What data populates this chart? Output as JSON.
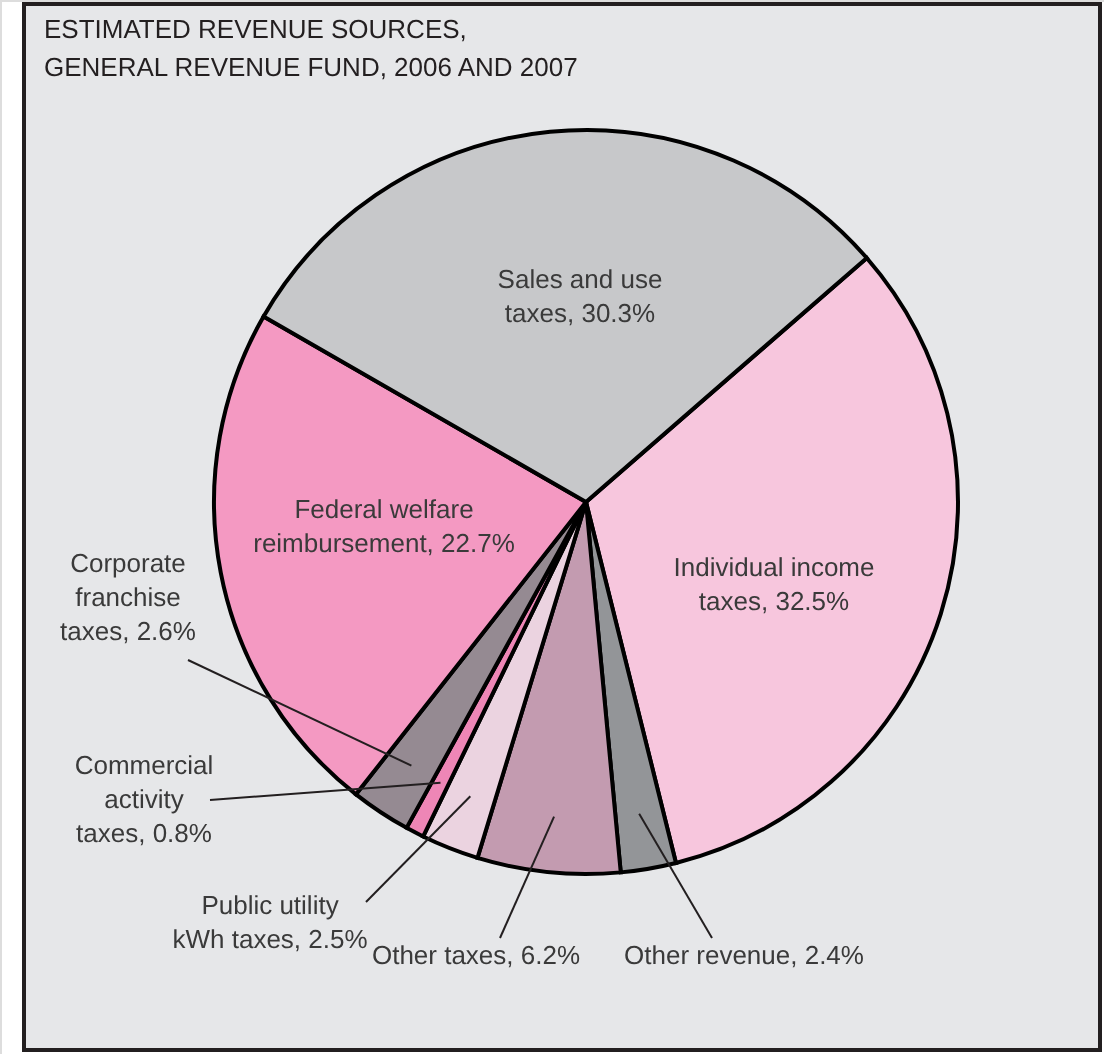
{
  "chart_data": {
    "type": "pie",
    "title": "ESTIMATED REVENUE SOURCES, GENERAL REVENUE FUND, 2006 AND 2007",
    "categories": [
      "Individual income taxes",
      "Other revenue",
      "Other taxes",
      "Public utility kWh taxes",
      "Commercial activity taxes",
      "Corporate franchise taxes",
      "Federal welfare reimbursement",
      "Sales and use taxes"
    ],
    "values": [
      32.5,
      2.4,
      6.2,
      2.5,
      0.8,
      2.6,
      22.7,
      30.3
    ],
    "value_labels": [
      "32.5%",
      "2.4%",
      "6.2%",
      "2.5%",
      "0.8%",
      "2.6%",
      "22.7%",
      "30.3%"
    ],
    "colors": [
      "#f7c6dd",
      "#939598",
      "#c39bb0",
      "#ebd3e0",
      "#ee86b6",
      "#958a92",
      "#f499c2",
      "#c7c8ca"
    ]
  }
}
